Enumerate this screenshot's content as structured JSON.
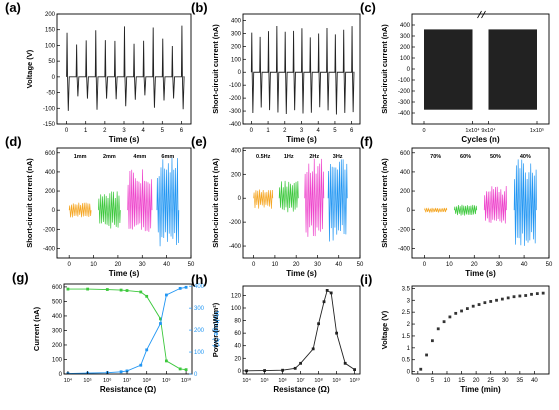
{
  "chart_data": [
    {
      "panel": "(a)",
      "type": "line",
      "xlabel": "Time (s)",
      "ylabel": "Voltage (V)",
      "xlim": [
        -0.5,
        6.5
      ],
      "ylim": [
        -150,
        200
      ],
      "xticks": [
        0,
        1,
        2,
        3,
        4,
        5,
        6
      ],
      "yticks": [
        -150,
        -100,
        -50,
        0,
        50,
        100,
        150,
        200
      ],
      "series": [
        {
          "color": "#222222",
          "waveform": "spike-train",
          "frequency_hz": 2,
          "pos_peak": 118,
          "neg_peak": -72,
          "max_pos": 165,
          "max_neg": -110,
          "t_start": 0.0,
          "t_end": 6.1
        }
      ]
    },
    {
      "panel": "(b)",
      "type": "line",
      "xlabel": "Time (s)",
      "ylabel": "Short-circuit current (nA)",
      "xlim": [
        -0.5,
        6.5
      ],
      "ylim": [
        -400,
        450
      ],
      "xticks": [
        0,
        1,
        2,
        3,
        4,
        5,
        6
      ],
      "yticks": [
        -400,
        -300,
        -200,
        -100,
        0,
        100,
        200,
        300,
        400
      ],
      "series": [
        {
          "color": "#222222",
          "waveform": "spike-train",
          "frequency_hz": 2,
          "pos_peak": 330,
          "neg_peak": -320,
          "max_pos": 360,
          "max_neg": -340,
          "t_start": 0.0,
          "t_end": 6.1
        }
      ]
    },
    {
      "panel": "(c)",
      "type": "area",
      "xlabel": "Cycles (n)",
      "ylabel": "Short-circuit current (nA)",
      "ylim": [
        -500,
        500
      ],
      "yticks": [
        -400,
        -300,
        -200,
        -100,
        0,
        100,
        200,
        300,
        400
      ],
      "xtick_labels": [
        "0",
        "1x10⁴",
        "9x10⁴",
        "1x10⁵"
      ],
      "axis_break": true,
      "series": [
        {
          "color": "#222222",
          "segments": [
            [
              0,
              10000
            ],
            [
              90000,
              100000
            ]
          ],
          "upper": 360,
          "lower": -370
        }
      ]
    },
    {
      "panel": "(d)",
      "type": "line",
      "xlabel": "Time (s)",
      "ylabel": "Short-circuit current (nA)",
      "xlim": [
        -5,
        50
      ],
      "ylim": [
        -500,
        650
      ],
      "xticks": [
        0,
        10,
        20,
        30,
        40,
        50
      ],
      "yticks": [
        -400,
        -200,
        0,
        200,
        400,
        600
      ],
      "series": [
        {
          "name": "1mm",
          "color": "#f5a623",
          "x_range": [
            0,
            9
          ],
          "upper": 80,
          "lower": -80
        },
        {
          "name": "2mm",
          "color": "#3cc83c",
          "x_range": [
            12,
            21
          ],
          "upper": 200,
          "lower": -200
        },
        {
          "name": "4mm",
          "color": "#ee44cc",
          "x_range": [
            24,
            34
          ],
          "upper": 440,
          "lower": -230
        },
        {
          "name": "6mm",
          "color": "#2196f3",
          "x_range": [
            36,
            45
          ],
          "upper": 560,
          "lower": -380
        }
      ]
    },
    {
      "panel": "(e)",
      "type": "line",
      "xlabel": "Time (s)",
      "ylabel": "Short-circuit current (nA)",
      "xlim": [
        -5,
        50
      ],
      "ylim": [
        -500,
        420
      ],
      "xticks": [
        0,
        10,
        20,
        30,
        40,
        50
      ],
      "yticks": [
        -400,
        -200,
        0,
        200,
        400
      ],
      "series": [
        {
          "name": "0.5Hz",
          "color": "#f5a623",
          "x_range": [
            0,
            9
          ],
          "upper": 80,
          "lower": -90
        },
        {
          "name": "1Hz",
          "color": "#3cc83c",
          "x_range": [
            12,
            21
          ],
          "upper": 150,
          "lower": -120
        },
        {
          "name": "2Hz",
          "color": "#ee44cc",
          "x_range": [
            24,
            33
          ],
          "upper": 340,
          "lower": -350
        },
        {
          "name": "3Hz",
          "color": "#2196f3",
          "x_range": [
            35,
            44
          ],
          "upper": 380,
          "lower": -370
        }
      ]
    },
    {
      "panel": "(f)",
      "type": "line",
      "xlabel": "Time (s)",
      "ylabel": "Short-circuit current (nA)",
      "xlim": [
        -5,
        50
      ],
      "ylim": [
        -500,
        650
      ],
      "xticks": [
        0,
        10,
        20,
        30,
        40,
        50
      ],
      "yticks": [
        -400,
        -200,
        0,
        200,
        400,
        600
      ],
      "series": [
        {
          "name": "70%",
          "color": "#f5a623",
          "x_range": [
            0,
            9
          ],
          "upper": 25,
          "lower": -25
        },
        {
          "name": "60%",
          "color": "#3cc83c",
          "x_range": [
            12,
            21
          ],
          "upper": 60,
          "lower": -60
        },
        {
          "name": "50%",
          "color": "#ee44cc",
          "x_range": [
            24,
            33
          ],
          "upper": 260,
          "lower": -140
        },
        {
          "name": "40%",
          "color": "#2196f3",
          "x_range": [
            36,
            45
          ],
          "upper": 540,
          "lower": -380
        }
      ]
    },
    {
      "panel": "(g)",
      "type": "line",
      "xlabel": "Resistance (Ω)",
      "ylabel": "Current (nA)",
      "y2label": "Voltage (V)",
      "xscale": "log",
      "xlim_exp": [
        3.8,
        10.3
      ],
      "ylim": [
        0,
        620
      ],
      "y2lim": [
        0,
        410
      ],
      "yticks": [
        0,
        100,
        200,
        300,
        400,
        500,
        600
      ],
      "y2ticks": [
        0,
        100,
        200,
        300,
        400
      ],
      "xtick_exps": [
        4,
        5,
        6,
        7,
        8,
        9,
        10
      ],
      "series": [
        {
          "axis": "left",
          "color": "#3cc83c",
          "x": [
            10000,
            100000,
            1000000,
            5000000,
            10000000,
            50000000,
            100000000,
            500000000,
            1000000000,
            5000000000,
            10000000000
          ],
          "y": [
            585,
            585,
            582,
            578,
            575,
            565,
            535,
            380,
            90,
            35,
            30
          ]
        },
        {
          "axis": "right",
          "color": "#2196f3",
          "x": [
            10000,
            100000,
            1000000,
            5000000,
            10000000,
            50000000,
            100000000,
            500000000,
            1000000000,
            5000000000,
            10000000000
          ],
          "y": [
            2,
            4,
            6,
            10,
            14,
            40,
            110,
            230,
            360,
            390,
            395
          ]
        }
      ]
    },
    {
      "panel": "(h)",
      "type": "line",
      "xlabel": "Resistance (Ω)",
      "ylabel": "Power (mW/m²)",
      "xscale": "log",
      "xlim_exp": [
        3.8,
        10.3
      ],
      "ylim": [
        -5,
        135
      ],
      "yticks": [
        0,
        20,
        40,
        60,
        80,
        100,
        120
      ],
      "xtick_exps": [
        4,
        5,
        6,
        7,
        8,
        9,
        10
      ],
      "series": [
        {
          "color": "#222222",
          "x": [
            10000,
            100000,
            1000000,
            5000000,
            10000000,
            50000000,
            100000000,
            200000000,
            300000000,
            500000000,
            1000000000,
            3000000000,
            10000000000
          ],
          "y": [
            0,
            0.5,
            1,
            4,
            12,
            35,
            75,
            110,
            128,
            124,
            60,
            12,
            2
          ]
        }
      ]
    },
    {
      "panel": "(i)",
      "type": "scatter",
      "xlabel": "Time (min)",
      "ylabel": "Voltage (V)",
      "xlim": [
        -2,
        45
      ],
      "ylim": [
        -0.1,
        3.6
      ],
      "xticks": [
        0,
        5,
        10,
        15,
        20,
        25,
        30,
        35,
        40
      ],
      "yticks": [
        0,
        0.5,
        1.0,
        1.5,
        2.0,
        2.5,
        3.0,
        3.5
      ],
      "series": [
        {
          "color": "#333333",
          "x": [
            1,
            3,
            5,
            7,
            9,
            11,
            13,
            15,
            17,
            19,
            21,
            23,
            25,
            27,
            29,
            31,
            33,
            35,
            37,
            39,
            41,
            43
          ],
          "y": [
            0.1,
            0.7,
            1.3,
            1.8,
            2.1,
            2.3,
            2.45,
            2.55,
            2.65,
            2.75,
            2.82,
            2.9,
            2.95,
            3.0,
            3.05,
            3.1,
            3.15,
            3.18,
            3.2,
            3.25,
            3.28,
            3.3
          ]
        }
      ]
    }
  ]
}
